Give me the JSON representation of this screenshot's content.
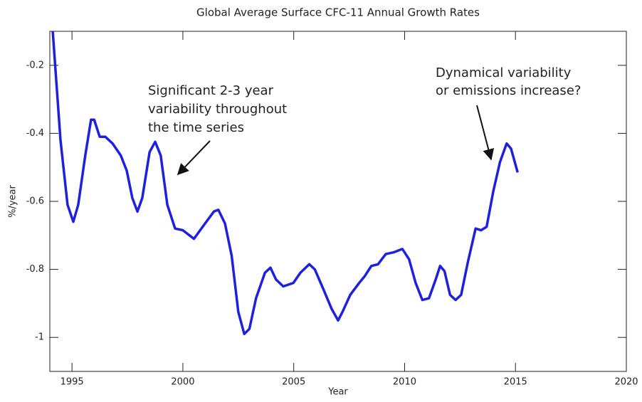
{
  "chart_data": {
    "type": "line",
    "title": "Global Average Surface CFC-11 Annual Growth Rates",
    "xlabel": "Year",
    "ylabel": "%/year",
    "x": [
      1994.13,
      1994.48,
      1994.8,
      1995.06,
      1995.28,
      1995.6,
      1995.86,
      1996.0,
      1996.25,
      1996.5,
      1996.83,
      1997.2,
      1997.47,
      1997.72,
      1997.95,
      1998.17,
      1998.5,
      1998.75,
      1999.0,
      1999.3,
      1999.65,
      2000.0,
      2000.5,
      2001.0,
      2001.4,
      2001.6,
      2001.9,
      2002.2,
      2002.5,
      2002.77,
      2003.0,
      2003.3,
      2003.7,
      2003.95,
      2004.2,
      2004.53,
      2004.98,
      2005.3,
      2005.7,
      2005.95,
      2006.35,
      2006.7,
      2007.0,
      2007.2,
      2007.55,
      2007.95,
      2008.2,
      2008.5,
      2008.8,
      2009.15,
      2009.5,
      2009.9,
      2010.2,
      2010.5,
      2010.8,
      2011.1,
      2011.4,
      2011.6,
      2011.8,
      2012.05,
      2012.3,
      2012.55,
      2012.85,
      2013.2,
      2013.45,
      2013.7,
      2014.0,
      2014.3,
      2014.6,
      2014.8,
      2015.1
    ],
    "series": [
      {
        "color": "#1f1fe0",
        "values": [
          -0.1,
          -0.42,
          -0.61,
          -0.66,
          -0.61,
          -0.465,
          -0.36,
          -0.36,
          -0.41,
          -0.41,
          -0.43,
          -0.465,
          -0.51,
          -0.59,
          -0.63,
          -0.59,
          -0.455,
          -0.425,
          -0.465,
          -0.61,
          -0.68,
          -0.685,
          -0.71,
          -0.665,
          -0.63,
          -0.625,
          -0.665,
          -0.76,
          -0.925,
          -0.99,
          -0.975,
          -0.885,
          -0.81,
          -0.795,
          -0.83,
          -0.85,
          -0.84,
          -0.81,
          -0.785,
          -0.8,
          -0.86,
          -0.915,
          -0.95,
          -0.925,
          -0.875,
          -0.84,
          -0.82,
          -0.79,
          -0.785,
          -0.755,
          -0.75,
          -0.74,
          -0.77,
          -0.84,
          -0.89,
          -0.885,
          -0.83,
          -0.79,
          -0.805,
          -0.875,
          -0.89,
          -0.875,
          -0.78,
          -0.68,
          -0.685,
          -0.675,
          -0.57,
          -0.485,
          -0.43,
          -0.445,
          -0.515
        ]
      }
    ],
    "xlim": [
      1994,
      2020
    ],
    "xticks": [
      1995,
      2000,
      2005,
      2010,
      2015,
      2020
    ],
    "ylim": [
      -1.1,
      -0.1
    ],
    "yticks": [
      -1.0,
      -0.8,
      -0.6,
      -0.4,
      -0.2
    ],
    "annotations": [
      {
        "lines": [
          "Significant 2-3 year",
          "variability throughout",
          "the time series"
        ]
      },
      {
        "lines": [
          "Dynamical variability",
          "or emissions increase?"
        ]
      }
    ]
  }
}
